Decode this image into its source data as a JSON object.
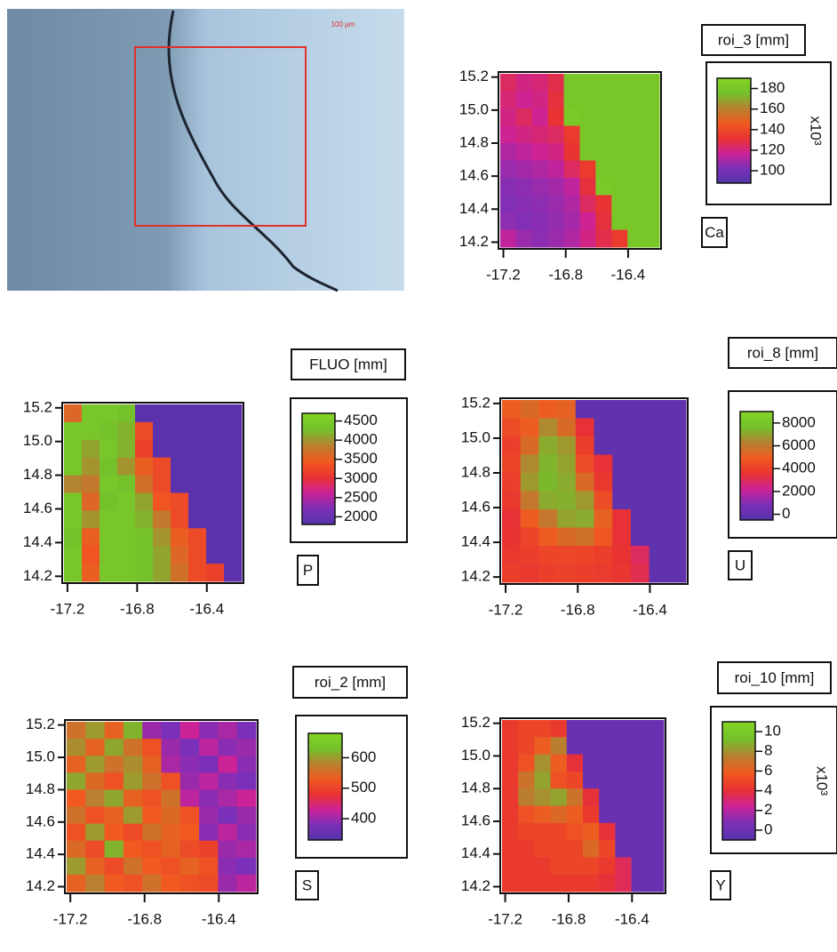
{
  "image": {
    "scale_label": "100 µm"
  },
  "chart_data": [
    {
      "type": "heatmap",
      "title": "roi_3 [mm]",
      "label": "Ca",
      "colorbar_label": "x10³",
      "xlim": [
        -17.22,
        -16.2
      ],
      "ylim": [
        14.17,
        15.22
      ],
      "xticks": [
        -17.2,
        -16.8,
        -16.4
      ],
      "yticks": [
        14.2,
        14.4,
        14.6,
        14.8,
        {
          "value": 15.0,
          "label": "15.0"
        },
        15.2
      ],
      "zlim": [
        88,
        190
      ],
      "zticks": [
        100,
        120,
        140,
        160,
        180
      ],
      "colorscale": [
        "#5233a8",
        "#7a30b8",
        "#cc2298",
        "#e83232",
        "#f05a20",
        "#b88030",
        "#74c02c",
        "#84d424"
      ],
      "z": [
        [
          125,
          120,
          122,
          128,
          180,
          180,
          180,
          180,
          180,
          180
        ],
        [
          122,
          118,
          120,
          130,
          180,
          180,
          180,
          180,
          180,
          180
        ],
        [
          120,
          125,
          118,
          132,
          182,
          180,
          180,
          180,
          180,
          180
        ],
        [
          118,
          120,
          122,
          125,
          135,
          180,
          180,
          180,
          180,
          180
        ],
        [
          112,
          115,
          118,
          120,
          132,
          180,
          180,
          180,
          180,
          180
        ],
        [
          108,
          110,
          112,
          115,
          125,
          135,
          180,
          180,
          180,
          180
        ],
        [
          105,
          106,
          108,
          110,
          115,
          130,
          182,
          180,
          180,
          180
        ],
        [
          104,
          105,
          106,
          108,
          112,
          125,
          132,
          180,
          180,
          180
        ],
        [
          106,
          104,
          105,
          107,
          110,
          118,
          130,
          180,
          180,
          180
        ],
        [
          115,
          108,
          106,
          108,
          112,
          120,
          128,
          135,
          180,
          180
        ]
      ]
    },
    {
      "type": "heatmap",
      "title": "FLUO [mm]",
      "label": "P",
      "xlim": [
        -17.22,
        -16.2
      ],
      "ylim": [
        14.17,
        15.22
      ],
      "xticks": [
        -17.2,
        -16.8,
        -16.4
      ],
      "yticks": [
        14.2,
        14.4,
        14.6,
        14.8,
        {
          "value": 15.0,
          "label": "15.0"
        },
        15.2
      ],
      "zlim": [
        1800,
        4700
      ],
      "zticks": [
        2000,
        2500,
        3000,
        3500,
        4000,
        4500
      ],
      "colorscale": [
        "#5233a8",
        "#7a30b8",
        "#cc2298",
        "#e83232",
        "#f05a20",
        "#b88030",
        "#74c02c",
        "#84d424"
      ],
      "z": [
        [
          3600,
          4400,
          4400,
          4300,
          1900,
          1900,
          1900,
          1900,
          1900,
          1900
        ],
        [
          4400,
          4400,
          4300,
          4200,
          3300,
          1900,
          1900,
          1900,
          1900,
          1900
        ],
        [
          4400,
          4100,
          4400,
          4200,
          3200,
          1900,
          1900,
          1900,
          1900,
          1900
        ],
        [
          4400,
          4000,
          4300,
          4000,
          3500,
          3300,
          1900,
          1900,
          1900,
          1900
        ],
        [
          3900,
          3800,
          4400,
          4300,
          3700,
          3300,
          1900,
          1900,
          1900,
          1900
        ],
        [
          4400,
          3600,
          4300,
          4400,
          4100,
          3400,
          3300,
          1900,
          1900,
          1900
        ],
        [
          4400,
          4000,
          4400,
          4400,
          4200,
          3800,
          3300,
          1900,
          1900,
          1900
        ],
        [
          4300,
          3500,
          4400,
          4400,
          4300,
          4000,
          3500,
          3300,
          1900,
          1900
        ],
        [
          4400,
          3400,
          4400,
          4400,
          4300,
          4100,
          3600,
          3300,
          1900,
          1900
        ],
        [
          4400,
          3500,
          4400,
          4400,
          4300,
          4100,
          3700,
          3300,
          3200,
          1900
        ]
      ]
    },
    {
      "type": "heatmap",
      "title": "roi_8 [mm]",
      "label": "U",
      "xlim": [
        -17.22,
        -16.2
      ],
      "ylim": [
        14.17,
        15.22
      ],
      "xticks": [
        -17.2,
        -16.8,
        -16.4
      ],
      "yticks": [
        14.2,
        14.4,
        14.6,
        14.8,
        {
          "value": 15.0,
          "label": "15.0"
        },
        15.2
      ],
      "zlim": [
        -500,
        9000
      ],
      "zticks": [
        0,
        2000,
        4000,
        6000,
        8000
      ],
      "colorscale": [
        "#5233a8",
        "#7a30b8",
        "#cc2298",
        "#e83232",
        "#f05a20",
        "#b88030",
        "#74c02c",
        "#84d424"
      ],
      "z": [
        [
          5000,
          5500,
          5000,
          5200,
          0,
          0,
          0,
          0,
          0,
          0
        ],
        [
          4500,
          5000,
          6500,
          5500,
          3500,
          0,
          0,
          0,
          0,
          0
        ],
        [
          4000,
          5500,
          7200,
          6800,
          4000,
          0,
          0,
          0,
          0,
          0
        ],
        [
          4200,
          6500,
          7400,
          7000,
          4500,
          3500,
          0,
          0,
          0,
          0
        ],
        [
          4000,
          6800,
          7500,
          7200,
          5500,
          3800,
          0,
          0,
          0,
          0
        ],
        [
          3800,
          6000,
          7200,
          7300,
          6800,
          4500,
          0,
          0,
          0,
          0
        ],
        [
          3500,
          5000,
          6000,
          7000,
          7200,
          5200,
          3500,
          0,
          0,
          0
        ],
        [
          3600,
          4200,
          5000,
          5500,
          5800,
          4800,
          3500,
          0,
          0,
          0
        ],
        [
          3800,
          4000,
          4200,
          4300,
          4200,
          4000,
          3600,
          3000,
          0,
          0
        ],
        [
          4000,
          3800,
          4000,
          4100,
          4000,
          3900,
          3700,
          3200,
          0,
          0
        ]
      ]
    },
    {
      "type": "heatmap",
      "title": "roi_2 [mm]",
      "label": "S",
      "xlim": [
        -17.22,
        -16.2
      ],
      "ylim": [
        14.17,
        15.22
      ],
      "xticks": [
        -17.2,
        -16.8,
        -16.4
      ],
      "yticks": [
        14.2,
        14.4,
        14.6,
        14.8,
        {
          "value": 15.0,
          "label": "15.0"
        },
        15.2
      ],
      "zlim": [
        330,
        680
      ],
      "zticks": [
        400,
        500,
        600
      ],
      "colorscale": [
        "#5233a8",
        "#7a30b8",
        "#cc2298",
        "#e83232",
        "#f05a20",
        "#b88030",
        "#74c02c",
        "#84d424"
      ],
      "z": [
        [
          560,
          600,
          540,
          620,
          400,
          380,
          430,
          390,
          410,
          380
        ],
        [
          590,
          540,
          610,
          560,
          520,
          400,
          380,
          420,
          390,
          400
        ],
        [
          540,
          600,
          560,
          590,
          540,
          410,
          390,
          380,
          430,
          390
        ],
        [
          610,
          550,
          520,
          600,
          560,
          520,
          400,
          420,
          390,
          380
        ],
        [
          530,
          580,
          610,
          540,
          520,
          560,
          420,
          390,
          410,
          430
        ],
        [
          560,
          520,
          540,
          600,
          530,
          550,
          520,
          400,
          380,
          400
        ],
        [
          520,
          600,
          530,
          510,
          560,
          540,
          530,
          390,
          420,
          390
        ],
        [
          550,
          510,
          620,
          530,
          520,
          540,
          510,
          500,
          400,
          410
        ],
        [
          600,
          540,
          510,
          560,
          530,
          520,
          540,
          520,
          390,
          380
        ],
        [
          540,
          580,
          530,
          520,
          560,
          530,
          520,
          510,
          400,
          420
        ]
      ]
    },
    {
      "type": "heatmap",
      "title": "roi_10 [mm]",
      "label": "Y",
      "colorbar_label": "x10³",
      "xlim": [
        -17.22,
        -16.2
      ],
      "ylim": [
        14.17,
        15.22
      ],
      "xticks": [
        -17.2,
        -16.8,
        -16.4
      ],
      "yticks": [
        14.2,
        14.4,
        14.6,
        14.8,
        {
          "value": 15.0,
          "label": "15.0"
        },
        15.2
      ],
      "zlim": [
        -1,
        11
      ],
      "zticks": [
        0,
        2,
        4,
        6,
        8,
        10
      ],
      "colorscale": [
        "#5233a8",
        "#7a30b8",
        "#cc2298",
        "#e83232",
        "#f05a20",
        "#b88030",
        "#74c02c",
        "#84d424"
      ],
      "z": [
        [
          4.5,
          5,
          5,
          4.5,
          0,
          0,
          0,
          0,
          0,
          0
        ],
        [
          4.5,
          5,
          6,
          7.5,
          0,
          0,
          0,
          0,
          0,
          0
        ],
        [
          4.5,
          5.5,
          8,
          6,
          4,
          0,
          0,
          0,
          0,
          0
        ],
        [
          4.5,
          7,
          8.5,
          5.5,
          5,
          0,
          0,
          0,
          0,
          0
        ],
        [
          4.5,
          7.5,
          8,
          8.5,
          7,
          4,
          0,
          0,
          0,
          0
        ],
        [
          4.5,
          5.5,
          6,
          6.5,
          6,
          4.5,
          0,
          0,
          0,
          0
        ],
        [
          4.5,
          5,
          5,
          5,
          5.5,
          6,
          4,
          0,
          0,
          0
        ],
        [
          4.5,
          4.5,
          5,
          5,
          5,
          6.5,
          5,
          0,
          0,
          0
        ],
        [
          4.5,
          4.5,
          4.5,
          5,
          5,
          5,
          4.5,
          3.5,
          0,
          0
        ],
        [
          4.5,
          4.5,
          4.5,
          4.5,
          4.5,
          4.5,
          4,
          3.5,
          0,
          0
        ]
      ]
    }
  ]
}
